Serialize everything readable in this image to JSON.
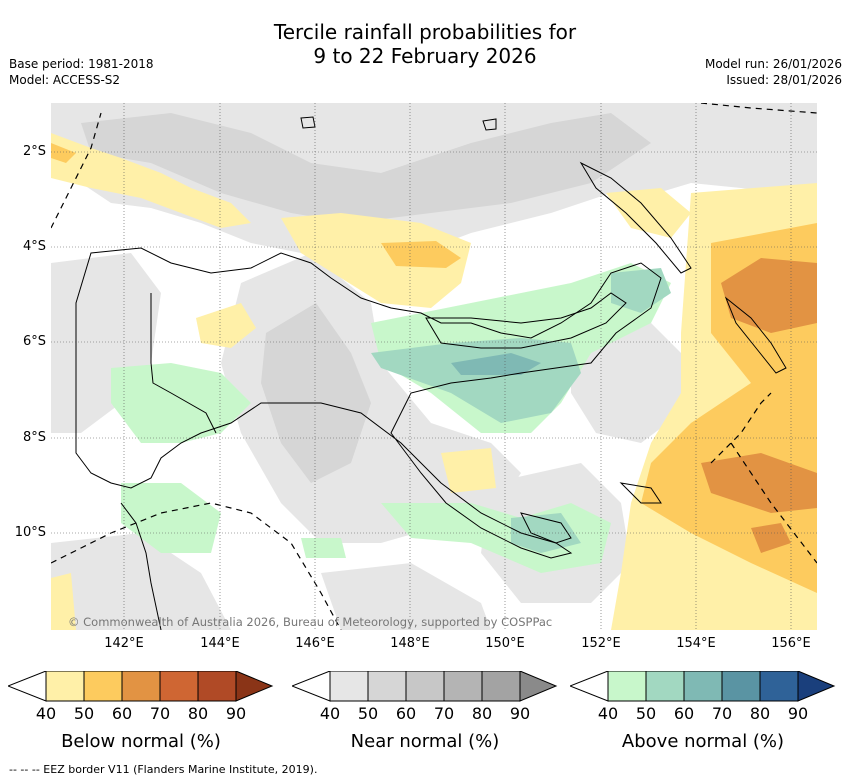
{
  "title": {
    "line1": "Tercile rainfall probabilities for",
    "line2": "9 to 22 February 2026"
  },
  "meta": {
    "base_period": "Base period: 1981-2018",
    "model": "Model: ACCESS-S2",
    "model_run": "Model run: 26/01/2026",
    "issued": "Issued: 28/01/2026"
  },
  "map": {
    "copyright": "© Commonwealth of Australia 2026, Bureau of Meteorology, supported by COSPPac",
    "lat_labels": [
      "2°S",
      "4°S",
      "6°S",
      "8°S",
      "10°S"
    ],
    "lon_labels": [
      "142°E",
      "144°E",
      "146°E",
      "148°E",
      "150°E",
      "152°E",
      "154°E",
      "156°E"
    ]
  },
  "legends": {
    "below": {
      "title": "Below normal (%)",
      "ticks": [
        "40",
        "50",
        "60",
        "70",
        "80",
        "90"
      ],
      "colors": [
        "#fff0a8",
        "#fdcb5e",
        "#e29343",
        "#cf6633",
        "#b04a26",
        "#8a3417"
      ]
    },
    "near": {
      "title": "Near normal (%)",
      "ticks": [
        "40",
        "50",
        "60",
        "70",
        "80",
        "90"
      ],
      "colors": [
        "#e6e6e6",
        "#d6d6d6",
        "#c7c7c7",
        "#b4b4b4",
        "#a3a3a3",
        "#8a8a8a"
      ]
    },
    "above": {
      "title": "Above normal (%)",
      "ticks": [
        "40",
        "50",
        "60",
        "70",
        "80",
        "90"
      ],
      "colors": [
        "#c8f7cb",
        "#a2d8c1",
        "#7fb9b4",
        "#5a94a3",
        "#2f6298",
        "#1a3f7c"
      ]
    }
  },
  "footnote": "-- -- -- EEZ border V11 (Flanders Marine Institute, 2019)."
}
